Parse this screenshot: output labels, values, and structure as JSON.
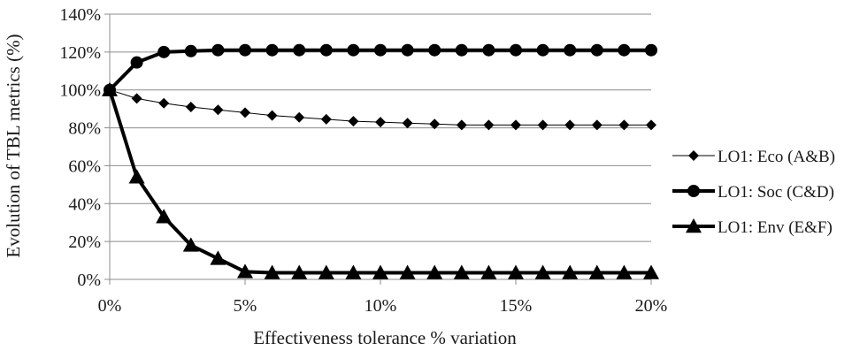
{
  "chart_data": {
    "type": "line",
    "xlabel": "Effectiveness tolerance % variation",
    "ylabel": "Evolution of TBL metrics (%)",
    "xlim": [
      0,
      20
    ],
    "ylim": [
      0,
      140
    ],
    "x_ticks": [
      "0%",
      "5%",
      "10%",
      "15%",
      "20%"
    ],
    "x_tick_values": [
      0,
      5,
      10,
      15,
      20
    ],
    "y_ticks": [
      "0%",
      "20%",
      "40%",
      "60%",
      "80%",
      "100%",
      "120%",
      "140%"
    ],
    "y_tick_values": [
      0,
      20,
      40,
      60,
      80,
      100,
      120,
      140
    ],
    "grid": "horizontal",
    "legend_position": "right",
    "x": [
      0,
      1,
      2,
      3,
      4,
      5,
      6,
      7,
      8,
      9,
      10,
      11,
      12,
      13,
      14,
      15,
      16,
      17,
      18,
      19,
      20
    ],
    "series": [
      {
        "name": "LO1: Eco (A&B)",
        "marker": "diamond",
        "line": "thin",
        "color": "#000000",
        "values": [
          100,
          95.5,
          93,
          91,
          89.5,
          88,
          86.5,
          85.5,
          84.5,
          83.5,
          83,
          82.5,
          82,
          81.5,
          81.5,
          81.5,
          81.5,
          81.5,
          81.5,
          81.5,
          81.5
        ]
      },
      {
        "name": "LO1: Soc (C&D)",
        "marker": "circle",
        "line": "thick",
        "color": "#000000",
        "values": [
          100,
          114.5,
          120,
          120.5,
          121,
          121,
          121,
          121,
          121,
          121,
          121,
          121,
          121,
          121,
          121,
          121,
          121,
          121,
          121,
          121,
          121
        ]
      },
      {
        "name": "LO1: Env (E&F)",
        "marker": "triangle",
        "line": "thick",
        "color": "#000000",
        "values": [
          100,
          54,
          33,
          18,
          11,
          4,
          3.5,
          3.5,
          3.5,
          3.5,
          3.5,
          3.5,
          3.5,
          3.5,
          3.5,
          3.5,
          3.5,
          3.5,
          3.5,
          3.5,
          3.5
        ]
      }
    ]
  }
}
